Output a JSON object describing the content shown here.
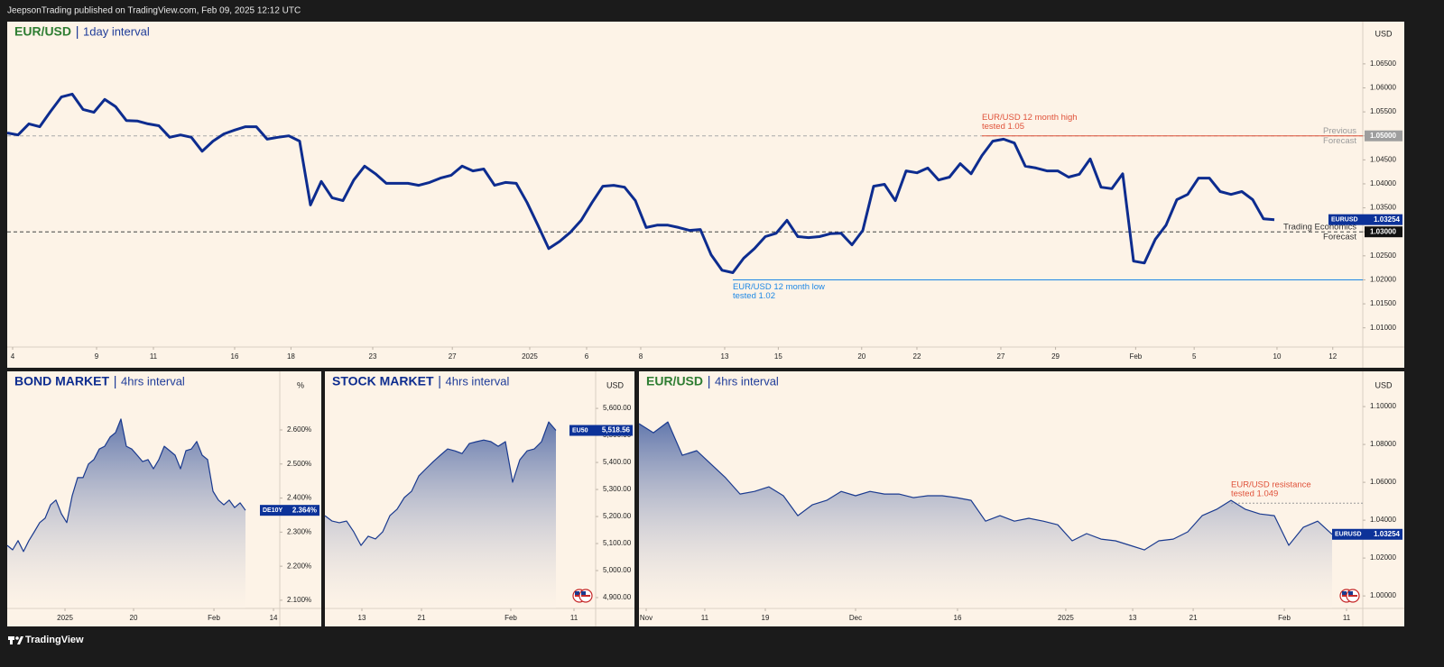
{
  "header": {
    "text": "JeepsonTrading published on TradingView.com, Feb 09, 2025 12:12 UTC"
  },
  "footer": {
    "brand": "TradingView"
  },
  "chart_data": [
    {
      "type": "line",
      "title": "EUR/USD",
      "subtitle": "1day interval",
      "unit": "USD",
      "title_color": "#2e7d32",
      "color": "#0d2c8f",
      "xlim": [
        0,
        125.17
      ],
      "ylim": [
        1.006,
        1.0738
      ],
      "xticks": [
        {
          "value": 0.5,
          "label": "4"
        },
        {
          "value": 8.25,
          "label": "9"
        },
        {
          "value": 13.5,
          "label": "11"
        },
        {
          "value": 21,
          "label": "16"
        },
        {
          "value": 26.2,
          "label": "18"
        },
        {
          "value": 33.75,
          "label": "23"
        },
        {
          "value": 41.1,
          "label": "27"
        },
        {
          "value": 48.25,
          "label": "2025"
        },
        {
          "value": 53.5,
          "label": "6"
        },
        {
          "value": 58.5,
          "label": "8"
        },
        {
          "value": 66.25,
          "label": "13"
        },
        {
          "value": 71.2,
          "label": "15"
        },
        {
          "value": 78.9,
          "label": "20"
        },
        {
          "value": 84,
          "label": "22"
        },
        {
          "value": 91.75,
          "label": "27"
        },
        {
          "value": 96.8,
          "label": "29"
        },
        {
          "value": 104.2,
          "label": "Feb"
        },
        {
          "value": 109.6,
          "label": "5"
        },
        {
          "value": 117.25,
          "label": "10"
        },
        {
          "value": 122.4,
          "label": "12"
        }
      ],
      "yticks": [
        {
          "value": 1.01,
          "label": "1.01000"
        },
        {
          "value": 1.015,
          "label": "1.01500"
        },
        {
          "value": 1.02,
          "label": "1.02000"
        },
        {
          "value": 1.025,
          "label": "1.02500"
        },
        {
          "value": 1.03,
          "label": "1.03000"
        },
        {
          "value": 1.035,
          "label": "1.03500"
        },
        {
          "value": 1.04,
          "label": "1.04000"
        },
        {
          "value": 1.045,
          "label": "1.04500"
        },
        {
          "value": 1.05,
          "label": "1.05000"
        },
        {
          "value": 1.055,
          "label": "1.05500"
        },
        {
          "value": 1.06,
          "label": "1.06000"
        },
        {
          "value": 1.065,
          "label": "1.06500"
        }
      ],
      "values": [
        1.0506,
        1.0502,
        1.0525,
        1.0519,
        1.0551,
        1.0581,
        1.0587,
        1.0555,
        1.0549,
        1.0576,
        1.0561,
        1.0532,
        1.0531,
        1.0525,
        1.0521,
        1.0497,
        1.0502,
        1.0497,
        1.0468,
        1.0489,
        1.0504,
        1.0512,
        1.0519,
        1.0519,
        1.0493,
        1.0497,
        1.05,
        1.0489,
        1.0356,
        1.0405,
        1.0371,
        1.0365,
        1.0408,
        1.0437,
        1.0421,
        1.0401,
        1.0401,
        1.0401,
        1.0397,
        1.0403,
        1.0412,
        1.0418,
        1.0437,
        1.0427,
        1.0431,
        1.0397,
        1.0403,
        1.0401,
        1.0361,
        1.0314,
        1.0265,
        1.028,
        1.0299,
        1.0324,
        1.0361,
        1.0395,
        1.0397,
        1.0393,
        1.0365,
        1.0309,
        1.0314,
        1.0314,
        1.0309,
        1.0303,
        1.0305,
        1.0252,
        1.022,
        1.0215,
        1.0245,
        1.0265,
        1.029,
        1.0297,
        1.0324,
        1.029,
        1.0288,
        1.029,
        1.0296,
        1.0297,
        1.0273,
        1.0303,
        1.0395,
        1.0399,
        1.0365,
        1.0427,
        1.0423,
        1.0433,
        1.0408,
        1.0414,
        1.0442,
        1.0421,
        1.0459,
        1.0489,
        1.0493,
        1.0485,
        1.0437,
        1.0433,
        1.0427,
        1.0427,
        1.0414,
        1.042,
        1.0452,
        1.0393,
        1.039,
        1.0421,
        1.0239,
        1.0235,
        1.0284,
        1.0314,
        1.0367,
        1.0378,
        1.0412,
        1.0412,
        1.0384,
        1.0378,
        1.0384,
        1.0367,
        1.0327,
        1.03254
      ],
      "price_tag": {
        "symbol": "EURUSD",
        "value": 1.03254,
        "label": "1.03254",
        "color": "#0c3299"
      },
      "reference_lines": [
        {
          "value": 1.05,
          "labels": [
            "Previous",
            "Forecast"
          ],
          "tag": "1.05000",
          "color": "#aaaaaa",
          "text_color": "#9a9a9a",
          "tag_color": "#9e9e9e"
        },
        {
          "value": 1.03,
          "labels": [
            "Trading Economics",
            "Forecast"
          ],
          "tag": "1.03000",
          "color": "#444444",
          "text_color": "#333333",
          "tag_color": "#111111"
        }
      ],
      "annotations": [
        {
          "lines": [
            "EUR/USD 12 month high",
            "tested 1.05"
          ],
          "x": 90,
          "value": 1.05,
          "color": "#e0523a",
          "placement": "above",
          "line": "solid"
        },
        {
          "lines": [
            "EUR/USD 12 month low",
            "tested 1.02"
          ],
          "x": 67,
          "value": 1.02,
          "color": "#1e88e5",
          "placement": "below",
          "line": "solid"
        }
      ]
    },
    {
      "type": "area",
      "title": "BOND MARKET",
      "subtitle": "4hrs interval",
      "unit": "%",
      "title_color": "#0d2c8f",
      "color": "#1a3a8f",
      "xlim": [
        0,
        50.33
      ],
      "ylim": [
        2.076,
        2.772
      ],
      "xticks": [
        {
          "value": 10.67,
          "label": "2025"
        },
        {
          "value": 23.33,
          "label": "20"
        },
        {
          "value": 38.17,
          "label": "Feb"
        },
        {
          "value": 49.17,
          "label": "14"
        }
      ],
      "yticks": [
        {
          "value": 2.1,
          "label": "2.100%"
        },
        {
          "value": 2.2,
          "label": "2.200%"
        },
        {
          "value": 2.3,
          "label": "2.300%"
        },
        {
          "value": 2.4,
          "label": "2.400%"
        },
        {
          "value": 2.5,
          "label": "2.500%"
        },
        {
          "value": 2.6,
          "label": "2.600%"
        }
      ],
      "values": [
        2.261,
        2.248,
        2.275,
        2.243,
        2.275,
        2.301,
        2.328,
        2.341,
        2.38,
        2.394,
        2.354,
        2.328,
        2.407,
        2.46,
        2.46,
        2.5,
        2.513,
        2.544,
        2.552,
        2.579,
        2.592,
        2.632,
        2.552,
        2.544,
        2.526,
        2.507,
        2.513,
        2.486,
        2.513,
        2.552,
        2.539,
        2.526,
        2.486,
        2.539,
        2.544,
        2.566,
        2.526,
        2.513,
        2.42,
        2.394,
        2.38,
        2.394,
        2.372,
        2.386,
        2.364
      ],
      "price_tag": {
        "symbol": "DE10Y",
        "value": 2.364,
        "label": "2.364%",
        "color": "#0c3299"
      }
    },
    {
      "type": "area",
      "title": "STOCK MARKET",
      "subtitle": "4hrs interval",
      "unit": "USD",
      "title_color": "#0d2c8f",
      "color": "#1a3a8f",
      "xlim": [
        0,
        37.5
      ],
      "ylim": [
        4860,
        5737
      ],
      "xticks": [
        {
          "value": 5.125,
          "label": "13"
        },
        {
          "value": 13.375,
          "label": "21"
        },
        {
          "value": 25.75,
          "label": "Feb"
        },
        {
          "value": 34.5,
          "label": "11"
        }
      ],
      "yticks": [
        {
          "value": 4900,
          "label": "4,900.00"
        },
        {
          "value": 5000,
          "label": "5,000.00"
        },
        {
          "value": 5100,
          "label": "5,100.00"
        },
        {
          "value": 5200,
          "label": "5,200.00"
        },
        {
          "value": 5300,
          "label": "5,300.00"
        },
        {
          "value": 5400,
          "label": "5,400.00"
        },
        {
          "value": 5500,
          "label": "5,500.00"
        },
        {
          "value": 5600,
          "label": "5,600.00"
        }
      ],
      "values": [
        5203,
        5183,
        5177,
        5183,
        5143,
        5093,
        5127,
        5117,
        5143,
        5203,
        5227,
        5270,
        5293,
        5350,
        5377,
        5403,
        5427,
        5450,
        5443,
        5433,
        5470,
        5477,
        5483,
        5477,
        5460,
        5477,
        5327,
        5410,
        5443,
        5450,
        5477,
        5550,
        5518.56
      ],
      "price_tag": {
        "symbol": "EU50",
        "value": 5518.56,
        "label": "5,518.56",
        "color": "#0c3299"
      }
    },
    {
      "type": "area",
      "title": "EUR/USD",
      "subtitle": "4hrs interval",
      "unit": "USD",
      "title_color": "#2e7d32",
      "color": "#1a3a8f",
      "xlim": [
        0,
        50.125
      ],
      "ylim": [
        0.9934,
        1.1186
      ],
      "xticks": [
        {
          "value": 0.5,
          "label": "Nov"
        },
        {
          "value": 4.56,
          "label": "11"
        },
        {
          "value": 8.75,
          "label": "19"
        },
        {
          "value": 15,
          "label": "Dec"
        },
        {
          "value": 22.06,
          "label": "16"
        },
        {
          "value": 29.56,
          "label": "2025"
        },
        {
          "value": 34.19,
          "label": "13"
        },
        {
          "value": 38.38,
          "label": "21"
        },
        {
          "value": 44.69,
          "label": "Feb"
        },
        {
          "value": 49,
          "label": "11"
        }
      ],
      "yticks": [
        {
          "value": 1,
          "label": "1.00000"
        },
        {
          "value": 1.02,
          "label": "1.02000"
        },
        {
          "value": 1.04,
          "label": "1.04000"
        },
        {
          "value": 1.06,
          "label": "1.06000"
        },
        {
          "value": 1.08,
          "label": "1.08000"
        },
        {
          "value": 1.1,
          "label": "1.10000"
        }
      ],
      "values": [
        1.091,
        1.0862,
        1.0919,
        1.0743,
        1.0767,
        1.0695,
        1.0624,
        1.0538,
        1.0552,
        1.0576,
        1.0529,
        1.0424,
        1.0481,
        1.0505,
        1.0552,
        1.0529,
        1.0552,
        1.0538,
        1.0538,
        1.0519,
        1.0529,
        1.0529,
        1.0519,
        1.0505,
        1.0395,
        1.0424,
        1.0395,
        1.041,
        1.0395,
        1.0376,
        1.0291,
        1.0329,
        1.03,
        1.0291,
        1.0267,
        1.0243,
        1.0291,
        1.03,
        1.0338,
        1.0424,
        1.0457,
        1.0505,
        1.0457,
        1.0433,
        1.0424,
        1.0267,
        1.0362,
        1.0395,
        1.03254
      ],
      "price_tag": {
        "symbol": "EURUSD",
        "value": 1.03254,
        "label": "1.03254",
        "color": "#0c3299"
      },
      "annotations": [
        {
          "lines": [
            "EUR/USD resistance",
            "tested 1.049"
          ],
          "x": 41,
          "value": 1.049,
          "color": "#e0523a",
          "placement": "above",
          "line": "dotted"
        }
      ]
    }
  ]
}
